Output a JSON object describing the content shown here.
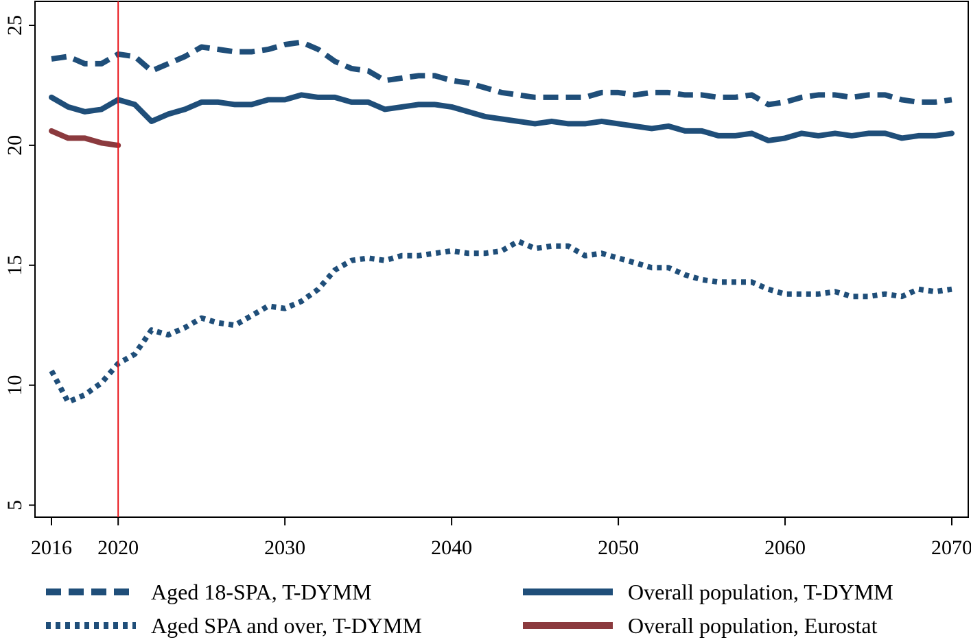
{
  "chart_data": {
    "type": "line",
    "title": "",
    "xlabel": "",
    "ylabel": "",
    "xlim": [
      2016,
      2070
    ],
    "ylim": [
      4.5,
      26
    ],
    "x_ticks": [
      2016,
      2020,
      2030,
      2040,
      2050,
      2060,
      2070
    ],
    "y_ticks": [
      5,
      10,
      15,
      20,
      25
    ],
    "grid": false,
    "legend_position": "bottom",
    "vertical_marker": {
      "x": 2020,
      "color": "#e8171d"
    },
    "series": [
      {
        "name": "Aged 18-SPA, T-DYMM",
        "style": "dashed",
        "color": "#1f4e79",
        "x": [
          2016,
          2017,
          2018,
          2019,
          2020,
          2021,
          2022,
          2023,
          2024,
          2025,
          2026,
          2027,
          2028,
          2029,
          2030,
          2031,
          2032,
          2033,
          2034,
          2035,
          2036,
          2037,
          2038,
          2039,
          2040,
          2041,
          2042,
          2043,
          2044,
          2045,
          2046,
          2047,
          2048,
          2049,
          2050,
          2051,
          2052,
          2053,
          2054,
          2055,
          2056,
          2057,
          2058,
          2059,
          2060,
          2061,
          2062,
          2063,
          2064,
          2065,
          2066,
          2067,
          2068,
          2069,
          2070
        ],
        "values": [
          23.6,
          23.7,
          23.4,
          23.4,
          23.8,
          23.7,
          23.1,
          23.4,
          23.7,
          24.1,
          24.0,
          23.9,
          23.9,
          24.0,
          24.2,
          24.3,
          24.0,
          23.5,
          23.2,
          23.1,
          22.7,
          22.8,
          22.9,
          22.9,
          22.7,
          22.6,
          22.4,
          22.2,
          22.1,
          22.0,
          22.0,
          22.0,
          22.0,
          22.2,
          22.2,
          22.1,
          22.2,
          22.2,
          22.1,
          22.1,
          22.0,
          22.0,
          22.1,
          21.7,
          21.8,
          22.0,
          22.1,
          22.1,
          22.0,
          22.1,
          22.1,
          21.9,
          21.8,
          21.8,
          21.9
        ]
      },
      {
        "name": "Aged SPA and over, T-DYMM",
        "style": "dotted",
        "color": "#1f4e79",
        "x": [
          2016,
          2017,
          2018,
          2019,
          2020,
          2021,
          2022,
          2023,
          2024,
          2025,
          2026,
          2027,
          2028,
          2029,
          2030,
          2031,
          2032,
          2033,
          2034,
          2035,
          2036,
          2037,
          2038,
          2039,
          2040,
          2041,
          2042,
          2043,
          2044,
          2045,
          2046,
          2047,
          2048,
          2049,
          2050,
          2051,
          2052,
          2053,
          2054,
          2055,
          2056,
          2057,
          2058,
          2059,
          2060,
          2061,
          2062,
          2063,
          2064,
          2065,
          2066,
          2067,
          2068,
          2069,
          2070
        ],
        "values": [
          10.6,
          9.3,
          9.6,
          10.1,
          10.9,
          11.3,
          12.3,
          12.1,
          12.4,
          12.8,
          12.6,
          12.5,
          12.9,
          13.3,
          13.2,
          13.5,
          14.0,
          14.8,
          15.2,
          15.3,
          15.2,
          15.4,
          15.4,
          15.5,
          15.6,
          15.5,
          15.5,
          15.6,
          16.0,
          15.7,
          15.8,
          15.8,
          15.4,
          15.5,
          15.3,
          15.1,
          14.9,
          14.9,
          14.6,
          14.4,
          14.3,
          14.3,
          14.3,
          14.0,
          13.8,
          13.8,
          13.8,
          13.9,
          13.7,
          13.7,
          13.8,
          13.7,
          14.0,
          13.9,
          14.0
        ]
      },
      {
        "name": "Overall population, T-DYMM",
        "style": "solid",
        "color": "#1f4e79",
        "x": [
          2016,
          2017,
          2018,
          2019,
          2020,
          2021,
          2022,
          2023,
          2024,
          2025,
          2026,
          2027,
          2028,
          2029,
          2030,
          2031,
          2032,
          2033,
          2034,
          2035,
          2036,
          2037,
          2038,
          2039,
          2040,
          2041,
          2042,
          2043,
          2044,
          2045,
          2046,
          2047,
          2048,
          2049,
          2050,
          2051,
          2052,
          2053,
          2054,
          2055,
          2056,
          2057,
          2058,
          2059,
          2060,
          2061,
          2062,
          2063,
          2064,
          2065,
          2066,
          2067,
          2068,
          2069,
          2070
        ],
        "values": [
          22.0,
          21.6,
          21.4,
          21.5,
          21.9,
          21.7,
          21.0,
          21.3,
          21.5,
          21.8,
          21.8,
          21.7,
          21.7,
          21.9,
          21.9,
          22.1,
          22.0,
          22.0,
          21.8,
          21.8,
          21.5,
          21.6,
          21.7,
          21.7,
          21.6,
          21.4,
          21.2,
          21.1,
          21.0,
          20.9,
          21.0,
          20.9,
          20.9,
          21.0,
          20.9,
          20.8,
          20.7,
          20.8,
          20.6,
          20.6,
          20.4,
          20.4,
          20.5,
          20.2,
          20.3,
          20.5,
          20.4,
          20.5,
          20.4,
          20.5,
          20.5,
          20.3,
          20.4,
          20.4,
          20.5
        ]
      },
      {
        "name": "Overall population, Eurostat",
        "style": "solid",
        "color": "#8b3a3e",
        "x": [
          2016,
          2017,
          2018,
          2019,
          2020
        ],
        "values": [
          20.6,
          20.3,
          20.3,
          20.1,
          20.0
        ]
      }
    ]
  }
}
